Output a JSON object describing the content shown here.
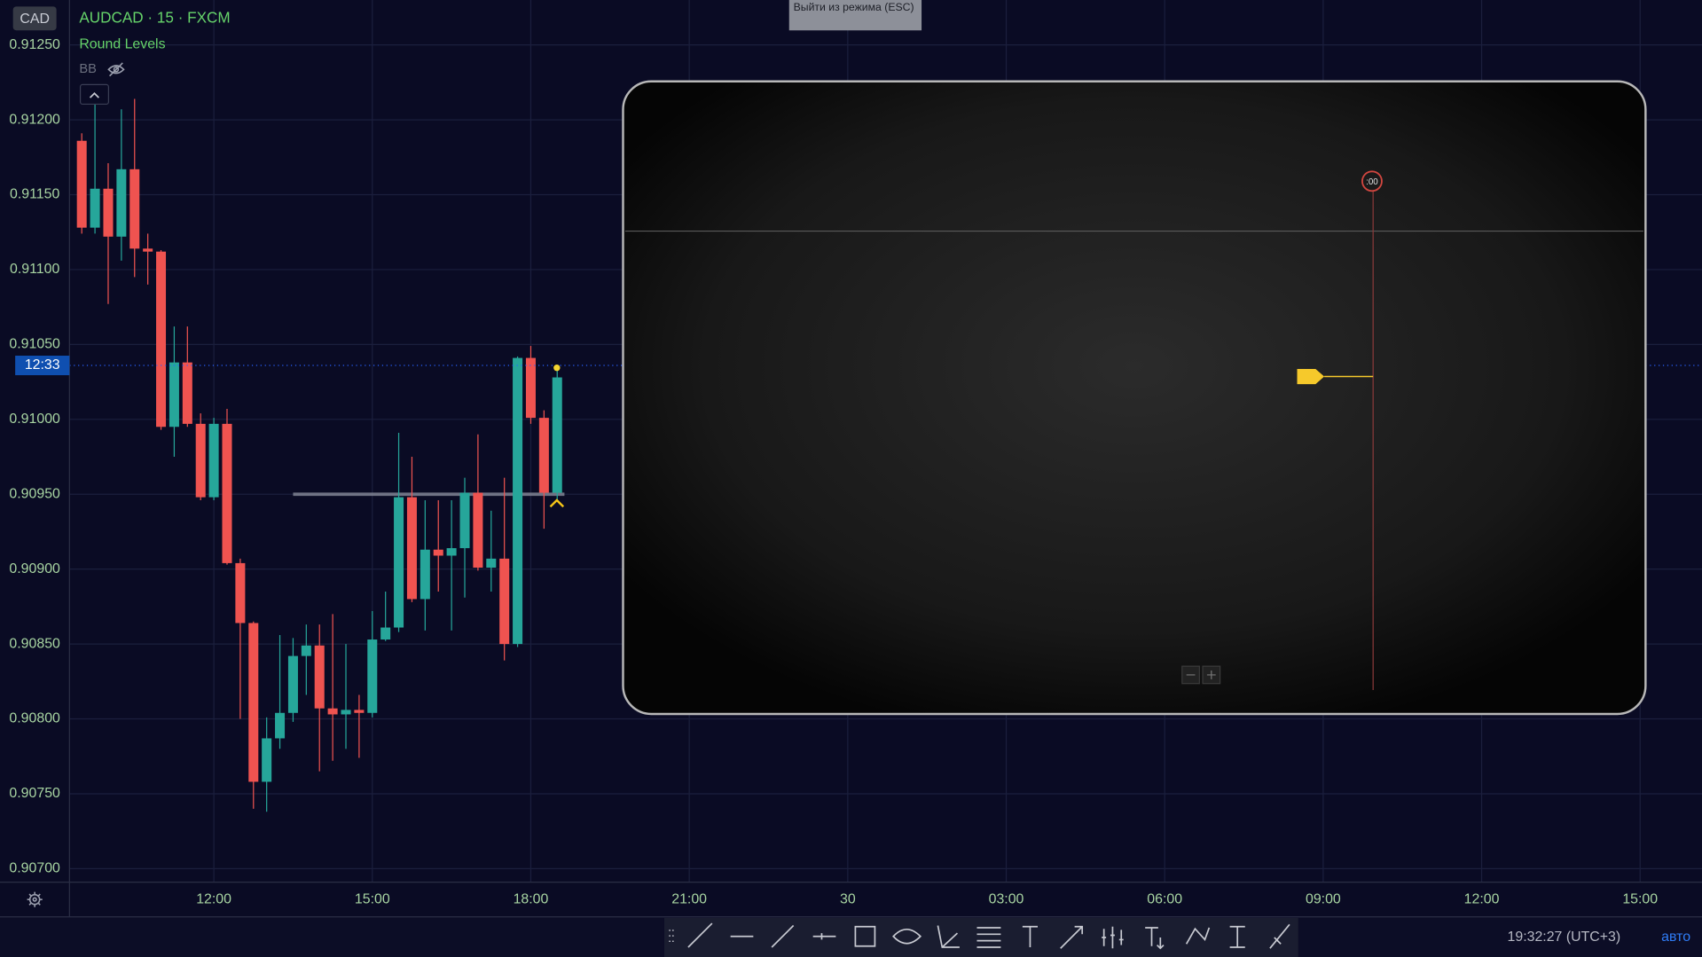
{
  "header": {
    "symbol_badge": "CAD",
    "title": "AUDCAD · 15 · FXCM",
    "indicator": "Round Levels",
    "indicator2": "BB"
  },
  "exit_hint": "Выйти из режима (ESC)",
  "overlay": {
    "marker": ":00"
  },
  "status": {
    "clock": "19:32:27 (UTC+3)",
    "scale_mode": "авто"
  },
  "chart_data": {
    "type": "candlestick",
    "categories": [
      "12:00",
      "15:00",
      "18:00",
      "21:00",
      "30",
      "03:00",
      "06:00",
      "09:00",
      "12:00",
      "15:00"
    ],
    "open": [
      0.91186,
      0.91128,
      0.91154,
      0.91122,
      0.91167,
      0.91114,
      0.91112,
      0.90995,
      0.91038,
      0.90997,
      0.90948,
      0.90997,
      0.90904,
      0.90864,
      0.90758,
      0.90787,
      0.90804,
      0.90842,
      0.90849,
      0.90807,
      0.90803,
      0.90806,
      0.90804,
      0.90853,
      0.90861,
      0.90948,
      0.9088,
      0.90913,
      0.90909,
      0.90914,
      0.90951,
      0.90901,
      0.90907,
      0.9085,
      0.91041,
      0.91001,
      0.90951
    ],
    "high": [
      0.91191,
      0.91211,
      0.91171,
      0.91207,
      0.91214,
      0.91124,
      0.91113,
      0.91062,
      0.91062,
      0.91004,
      0.91001,
      0.91007,
      0.90907,
      0.90865,
      0.90801,
      0.90856,
      0.90854,
      0.90863,
      0.90863,
      0.9087,
      0.9085,
      0.90816,
      0.90872,
      0.90885,
      0.90991,
      0.90975,
      0.90946,
      0.90946,
      0.90946,
      0.90961,
      0.9099,
      0.90939,
      0.90961,
      0.91042,
      0.91049,
      0.91006,
      0.91033
    ],
    "low": [
      0.91124,
      0.91124,
      0.91077,
      0.91106,
      0.91095,
      0.9109,
      0.90993,
      0.90975,
      0.90995,
      0.90946,
      0.90946,
      0.90903,
      0.908,
      0.9074,
      0.90738,
      0.9078,
      0.90798,
      0.90816,
      0.90765,
      0.90772,
      0.9078,
      0.90774,
      0.90801,
      0.90852,
      0.90858,
      0.90878,
      0.90859,
      0.90885,
      0.90859,
      0.90881,
      0.90899,
      0.90885,
      0.90839,
      0.90848,
      0.90997,
      0.90927,
      0.90946
    ],
    "close": [
      0.91128,
      0.91154,
      0.91122,
      0.91167,
      0.91114,
      0.91112,
      0.90995,
      0.91038,
      0.90997,
      0.90948,
      0.90997,
      0.90904,
      0.90864,
      0.90758,
      0.90787,
      0.90804,
      0.90842,
      0.90849,
      0.90807,
      0.90803,
      0.90806,
      0.90804,
      0.90853,
      0.90861,
      0.90948,
      0.9088,
      0.90913,
      0.90909,
      0.90914,
      0.90951,
      0.90901,
      0.90907,
      0.9085,
      0.91041,
      0.91001,
      0.90951,
      0.91028
    ],
    "up_color": "#26a69a",
    "down_color": "#ef5350",
    "ylim": [
      0.90691,
      0.9128
    ],
    "yticks": [
      {
        "value": 0.907,
        "label": "0.90700"
      },
      {
        "value": 0.9075,
        "label": "0.90750"
      },
      {
        "value": 0.908,
        "label": "0.90800"
      },
      {
        "value": 0.9085,
        "label": "0.90850"
      },
      {
        "value": 0.909,
        "label": "0.90900"
      },
      {
        "value": 0.9095,
        "label": "0.90950"
      },
      {
        "value": 0.91,
        "label": "0.91000"
      },
      {
        "value": 0.9105,
        "label": "0.91050"
      },
      {
        "value": 0.911,
        "label": "0.91100"
      },
      {
        "value": 0.9115,
        "label": "0.91150"
      },
      {
        "value": 0.912,
        "label": "0.91200"
      },
      {
        "value": 0.9125,
        "label": "0.91250"
      }
    ],
    "price_marker": {
      "value": 0.91036,
      "label": "12:33"
    },
    "level_line": 0.9095,
    "grid": true
  }
}
